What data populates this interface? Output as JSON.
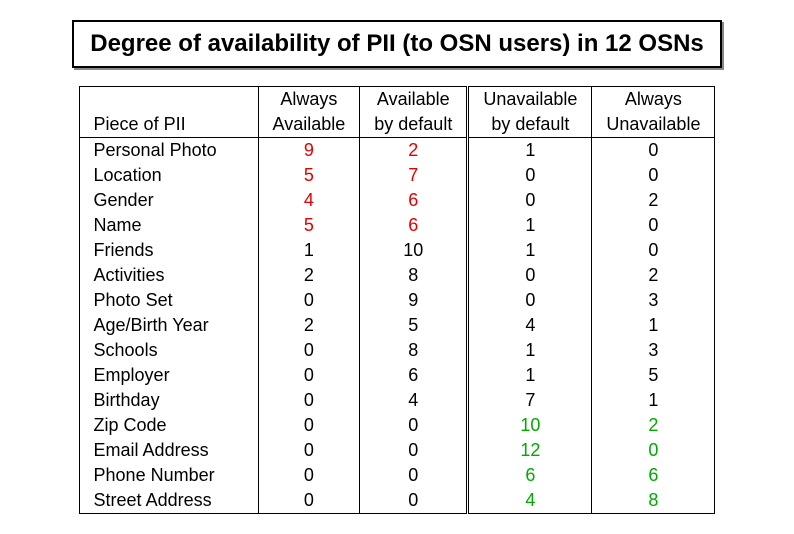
{
  "title": "Degree of availability of PII (to OSN users) in 12 OSNs",
  "columns": [
    {
      "line1": "",
      "line2": "Piece of PII"
    },
    {
      "line1": "Always",
      "line2": "Available"
    },
    {
      "line1": "Available",
      "line2": "by default"
    },
    {
      "line1": "Unavailable",
      "line2": "by default"
    },
    {
      "line1": "Always",
      "line2": "Unavailable"
    }
  ],
  "rows": [
    {
      "label": "Personal Photo",
      "cells": [
        {
          "v": "9",
          "c": "red"
        },
        {
          "v": "2",
          "c": "red"
        },
        {
          "v": "1",
          "c": ""
        },
        {
          "v": "0",
          "c": ""
        }
      ]
    },
    {
      "label": "Location",
      "cells": [
        {
          "v": "5",
          "c": "red"
        },
        {
          "v": "7",
          "c": "red"
        },
        {
          "v": "0",
          "c": ""
        },
        {
          "v": "0",
          "c": ""
        }
      ]
    },
    {
      "label": "Gender",
      "cells": [
        {
          "v": "4",
          "c": "red"
        },
        {
          "v": "6",
          "c": "red"
        },
        {
          "v": "0",
          "c": ""
        },
        {
          "v": "2",
          "c": ""
        }
      ]
    },
    {
      "label": "Name",
      "cells": [
        {
          "v": "5",
          "c": "red"
        },
        {
          "v": "6",
          "c": "red"
        },
        {
          "v": "1",
          "c": ""
        },
        {
          "v": "0",
          "c": ""
        }
      ]
    },
    {
      "label": "Friends",
      "cells": [
        {
          "v": "1",
          "c": ""
        },
        {
          "v": "10",
          "c": ""
        },
        {
          "v": "1",
          "c": ""
        },
        {
          "v": "0",
          "c": ""
        }
      ]
    },
    {
      "label": "Activities",
      "cells": [
        {
          "v": "2",
          "c": ""
        },
        {
          "v": "8",
          "c": ""
        },
        {
          "v": "0",
          "c": ""
        },
        {
          "v": "2",
          "c": ""
        }
      ]
    },
    {
      "label": "Photo Set",
      "cells": [
        {
          "v": "0",
          "c": ""
        },
        {
          "v": "9",
          "c": ""
        },
        {
          "v": "0",
          "c": ""
        },
        {
          "v": "3",
          "c": ""
        }
      ]
    },
    {
      "label": "Age/Birth Year",
      "cells": [
        {
          "v": "2",
          "c": ""
        },
        {
          "v": "5",
          "c": ""
        },
        {
          "v": "4",
          "c": ""
        },
        {
          "v": "1",
          "c": ""
        }
      ]
    },
    {
      "label": "Schools",
      "cells": [
        {
          "v": "0",
          "c": ""
        },
        {
          "v": "8",
          "c": ""
        },
        {
          "v": "1",
          "c": ""
        },
        {
          "v": "3",
          "c": ""
        }
      ]
    },
    {
      "label": "Employer",
      "cells": [
        {
          "v": "0",
          "c": ""
        },
        {
          "v": "6",
          "c": ""
        },
        {
          "v": "1",
          "c": ""
        },
        {
          "v": "5",
          "c": ""
        }
      ]
    },
    {
      "label": "Birthday",
      "cells": [
        {
          "v": "0",
          "c": ""
        },
        {
          "v": "4",
          "c": ""
        },
        {
          "v": "7",
          "c": ""
        },
        {
          "v": "1",
          "c": ""
        }
      ]
    },
    {
      "label": "Zip Code",
      "cells": [
        {
          "v": "0",
          "c": ""
        },
        {
          "v": "0",
          "c": ""
        },
        {
          "v": "10",
          "c": "green"
        },
        {
          "v": "2",
          "c": "green"
        }
      ]
    },
    {
      "label": "Email Address",
      "cells": [
        {
          "v": "0",
          "c": ""
        },
        {
          "v": "0",
          "c": ""
        },
        {
          "v": "12",
          "c": "green"
        },
        {
          "v": "0",
          "c": "green"
        }
      ]
    },
    {
      "label": "Phone Number",
      "cells": [
        {
          "v": "0",
          "c": ""
        },
        {
          "v": "0",
          "c": ""
        },
        {
          "v": "6",
          "c": "green"
        },
        {
          "v": "6",
          "c": "green"
        }
      ]
    },
    {
      "label": "Street Address",
      "cells": [
        {
          "v": "0",
          "c": ""
        },
        {
          "v": "0",
          "c": ""
        },
        {
          "v": "4",
          "c": "green"
        },
        {
          "v": "8",
          "c": "green"
        }
      ]
    }
  ],
  "colors": {
    "red": "#e50000",
    "green": "#00aa00",
    "text": "#000000",
    "background": "#ffffff"
  },
  "font": {
    "title_size": 24,
    "body_size": 18,
    "family": "Helvetica"
  }
}
